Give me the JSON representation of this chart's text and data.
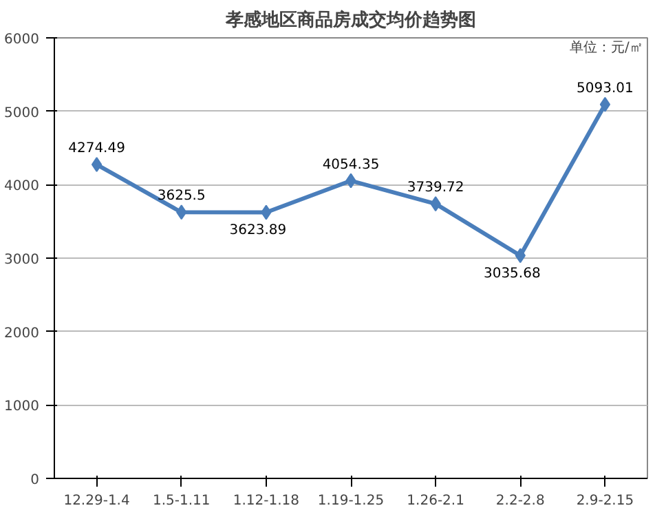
{
  "chart_data": {
    "type": "line",
    "title": "孝感地区商品房成交均价趋势图",
    "annotations": [
      "单位：元/㎡"
    ],
    "categories": [
      "12.29-1.4",
      "1.5-1.11",
      "1.12-1.18",
      "1.19-1.25",
      "1.26-2.1",
      "2.2-2.8",
      "2.9-2.15"
    ],
    "values": [
      4274.49,
      3625.5,
      3623.89,
      4054.35,
      3739.72,
      3035.68,
      5093.01
    ],
    "color": "#4a7ebb",
    "marker": "diamond",
    "data_labels": true,
    "ylim": [
      0,
      6000
    ],
    "yticks": [
      0,
      1000,
      2000,
      3000,
      4000,
      5000,
      6000
    ],
    "grid": "y"
  }
}
